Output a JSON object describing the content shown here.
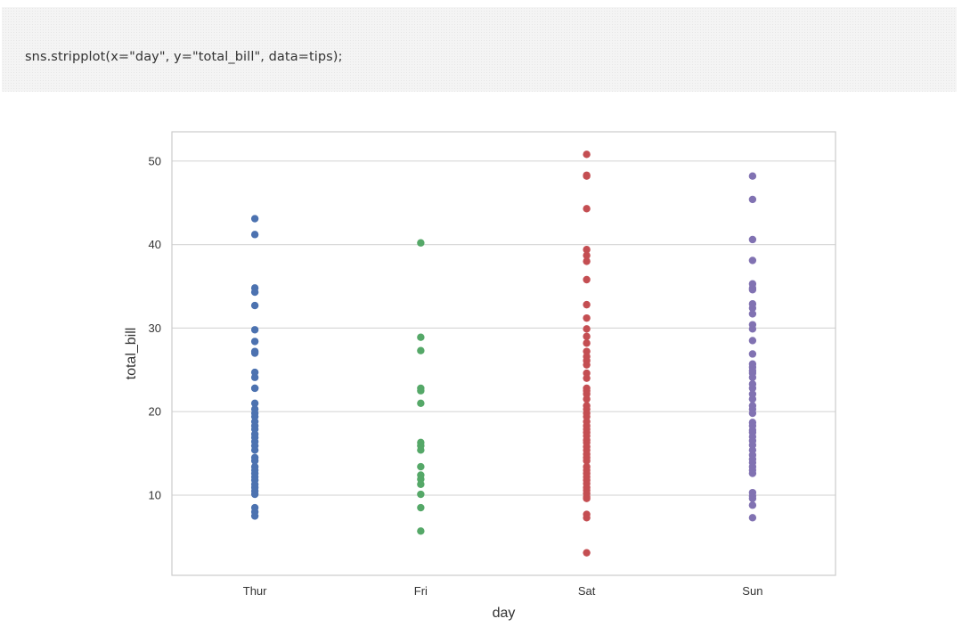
{
  "code_cell": {
    "code": "sns.stripplot(x=\"day\", y=\"total_bill\", data=tips);"
  },
  "chart_data": {
    "type": "scatter",
    "title": "",
    "xlabel": "day",
    "ylabel": "total_bill",
    "categories": [
      "Thur",
      "Fri",
      "Sat",
      "Sun"
    ],
    "ylim": [
      0.4,
      53.5
    ],
    "yticks": [
      10,
      20,
      30,
      40,
      50
    ],
    "grid": "horizontal",
    "colors": [
      "#4c72b0",
      "#55a868",
      "#c44e52",
      "#8172b2"
    ],
    "series": [
      {
        "category": "Thur",
        "values": [
          43.1,
          41.2,
          34.8,
          34.3,
          32.7,
          29.8,
          28.4,
          27.2,
          27.0,
          24.7,
          24.1,
          22.8,
          22.8,
          21.0,
          20.3,
          19.8,
          19.4,
          18.8,
          18.3,
          17.9,
          17.3,
          16.9,
          16.4,
          15.9,
          15.4,
          14.5,
          14.1,
          13.4,
          13.0,
          12.6,
          12.2,
          11.8,
          11.3,
          10.9,
          10.5,
          10.1,
          8.5,
          8.0,
          7.5
        ]
      },
      {
        "category": "Fri",
        "values": [
          40.2,
          28.9,
          27.3,
          22.8,
          22.5,
          21.0,
          16.3,
          15.9,
          15.4,
          13.4,
          12.4,
          11.9,
          11.3,
          10.1,
          8.5,
          5.7
        ]
      },
      {
        "category": "Sat",
        "values": [
          50.8,
          48.3,
          48.2,
          44.3,
          39.4,
          38.7,
          38.0,
          35.8,
          32.8,
          31.2,
          29.9,
          29.0,
          28.2,
          27.2,
          26.6,
          26.1,
          25.6,
          24.6,
          24.0,
          22.8,
          22.5,
          22.1,
          21.5,
          20.7,
          20.3,
          19.8,
          19.4,
          18.8,
          18.3,
          17.9,
          17.5,
          17.1,
          16.6,
          16.3,
          15.8,
          15.4,
          14.9,
          14.5,
          14.1,
          13.4,
          13.0,
          12.6,
          12.2,
          11.8,
          11.4,
          10.9,
          10.6,
          10.2,
          9.8,
          9.6,
          7.7,
          7.3,
          3.1
        ]
      },
      {
        "category": "Sun",
        "values": [
          48.2,
          45.4,
          40.6,
          38.1,
          35.3,
          34.8,
          34.6,
          32.9,
          32.4,
          31.7,
          30.4,
          29.9,
          28.5,
          26.9,
          25.7,
          25.3,
          24.9,
          24.6,
          24.1,
          23.3,
          22.8,
          22.1,
          21.5,
          20.7,
          20.3,
          19.8,
          18.7,
          18.3,
          17.8,
          17.5,
          17.0,
          16.5,
          16.0,
          15.4,
          14.8,
          14.3,
          13.9,
          13.4,
          13.0,
          12.6,
          10.3,
          9.9,
          9.6,
          8.8,
          7.3
        ]
      }
    ]
  }
}
